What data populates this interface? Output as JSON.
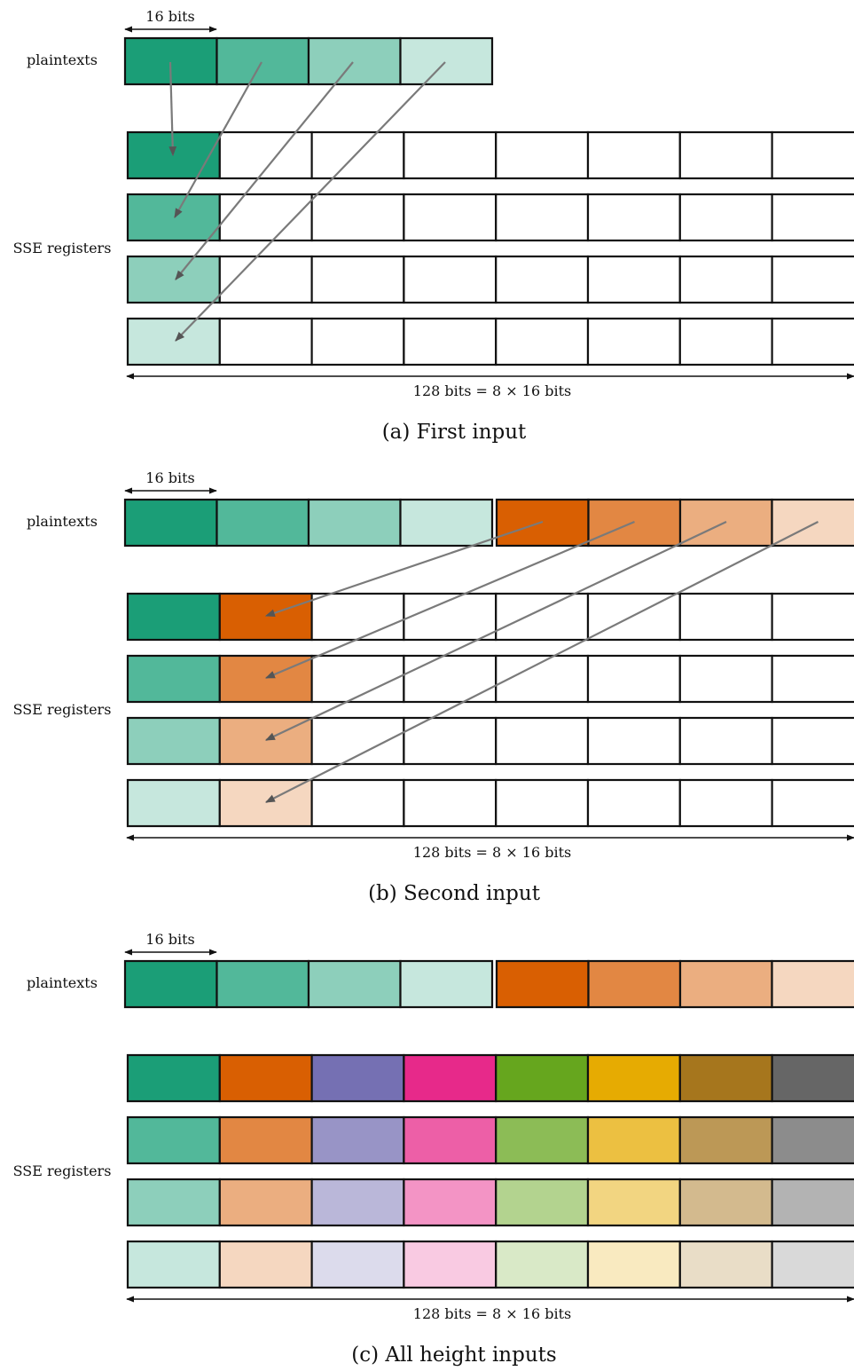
{
  "labels": {
    "width16": "16 bits",
    "plaintexts": "plaintexts",
    "sse": "SSE registers",
    "width128": "128 bits = 8 × 16 bits"
  },
  "panels": [
    {
      "id": "a",
      "caption": "(a) First input",
      "plaintext_groups": 1,
      "filled_columns": 1,
      "arrows": "first"
    },
    {
      "id": "b",
      "caption": "(b) Second input",
      "plaintext_groups": 2,
      "filled_columns": 2,
      "arrows": "second"
    },
    {
      "id": "c",
      "caption": "(c) All height inputs",
      "plaintext_groups": 2,
      "filled_columns": 8,
      "arrows": "none"
    }
  ],
  "colors": {
    "arrow": "#7a7a7a",
    "border": "#111111",
    "palette": [
      [
        "#1b9e77",
        "#52b89a",
        "#8dcfbb",
        "#c6e7dd"
      ],
      [
        "#d95f02",
        "#e28743",
        "#ebae80",
        "#f5d7c0"
      ],
      [
        "#7570b3",
        "#9894c6",
        "#bab7d9",
        "#dcdbec"
      ],
      [
        "#e7298a",
        "#ed5fa7",
        "#f394c5",
        "#f9cae2"
      ],
      [
        "#66a61e",
        "#8cbc56",
        "#b3d38f",
        "#d9e9c7"
      ],
      [
        "#e6ab02",
        "#ecc041",
        "#f2d581",
        "#f9eac0"
      ],
      [
        "#a6761d",
        "#bc9856",
        "#d3ba8e",
        "#e9ddc7"
      ],
      [
        "#666666",
        "#8c8c8c",
        "#b3b3b3",
        "#d9d9d9"
      ]
    ]
  }
}
